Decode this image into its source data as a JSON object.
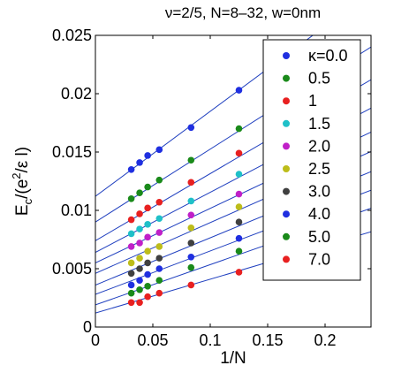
{
  "chart_data": {
    "type": "scatter",
    "title": "ν=2/5, N=8–32, w=0nm",
    "xlabel": "1/N",
    "ylabel_main": "E",
    "ylabel_sub": "c",
    "ylabel_tail": "/(e",
    "ylabel_sup": "2",
    "ylabel_end": "/ε l)",
    "xlim": [
      0,
      0.24
    ],
    "ylim": [
      0,
      0.025
    ],
    "x_ticks": [
      0,
      0.05,
      0.1,
      0.15,
      0.2
    ],
    "x_tick_labels": [
      "0",
      "0.05",
      "0.1",
      "0.15",
      "0.2"
    ],
    "y_ticks": [
      0,
      0.005,
      0.01,
      0.015,
      0.02,
      0.025
    ],
    "y_tick_labels": [
      "0",
      "0.005",
      "0.01",
      "0.015",
      "0.02",
      "0.025"
    ],
    "x": [
      0.03125,
      0.0385,
      0.0455,
      0.0556,
      0.0833,
      0.125
    ],
    "legend_position": "top-right",
    "grid": false,
    "line_color": "#1f3fbf",
    "series": [
      {
        "name": "κ=0.0",
        "color": "#1f2fe0",
        "values": [
          0.0135,
          0.0141,
          0.0147,
          0.0152,
          0.0171,
          0.0203
        ],
        "fit": [
          0.0112,
          0.0729
        ]
      },
      {
        "name": "0.5",
        "color": "#1a8a1a",
        "values": [
          0.011,
          0.0115,
          0.012,
          0.0126,
          0.0143,
          0.017
        ],
        "fit": [
          0.009,
          0.0625
        ]
      },
      {
        "name": "1",
        "color": "#e82020",
        "values": [
          0.0092,
          0.0097,
          0.0102,
          0.0107,
          0.0124,
          0.0149
        ],
        "fit": [
          0.0074,
          0.0575
        ]
      },
      {
        "name": "1.5",
        "color": "#1fc0c8",
        "values": [
          0.008,
          0.0084,
          0.0088,
          0.0093,
          0.0108,
          0.0131
        ],
        "fit": [
          0.0064,
          0.0515
        ]
      },
      {
        "name": "2.0",
        "color": "#c020c8",
        "values": [
          0.0069,
          0.0072,
          0.0077,
          0.0081,
          0.0096,
          0.0114
        ],
        "fit": [
          0.0055,
          0.0467
        ]
      },
      {
        "name": "2.5",
        "color": "#bdbd1a",
        "values": [
          0.0055,
          0.0059,
          0.0065,
          0.0069,
          0.0085,
          0.0103
        ],
        "fit": [
          0.0046,
          0.0435
        ]
      },
      {
        "name": "3.0",
        "color": "#404040",
        "values": [
          0.0046,
          0.005,
          0.0055,
          0.0059,
          0.0072,
          0.009
        ],
        "fit": [
          0.0036,
          0.0405
        ]
      },
      {
        "name": "4.0",
        "color": "#1f2fe0",
        "values": [
          0.0036,
          0.004,
          0.0045,
          0.005,
          0.006,
          0.0076
        ],
        "fit": [
          0.0028,
          0.0372
        ]
      },
      {
        "name": "5.0",
        "color": "#1a8a1a",
        "values": [
          0.0029,
          0.0032,
          0.0035,
          0.004,
          0.0051,
          0.0065
        ],
        "fit": [
          0.0019,
          0.0345
        ]
      },
      {
        "name": "7.0",
        "color": "#e82020",
        "values": [
          0.0021,
          0.0021,
          0.0026,
          0.0029,
          0.0036,
          0.0047
        ],
        "fit": [
          0.0012,
          0.029
        ]
      }
    ]
  }
}
